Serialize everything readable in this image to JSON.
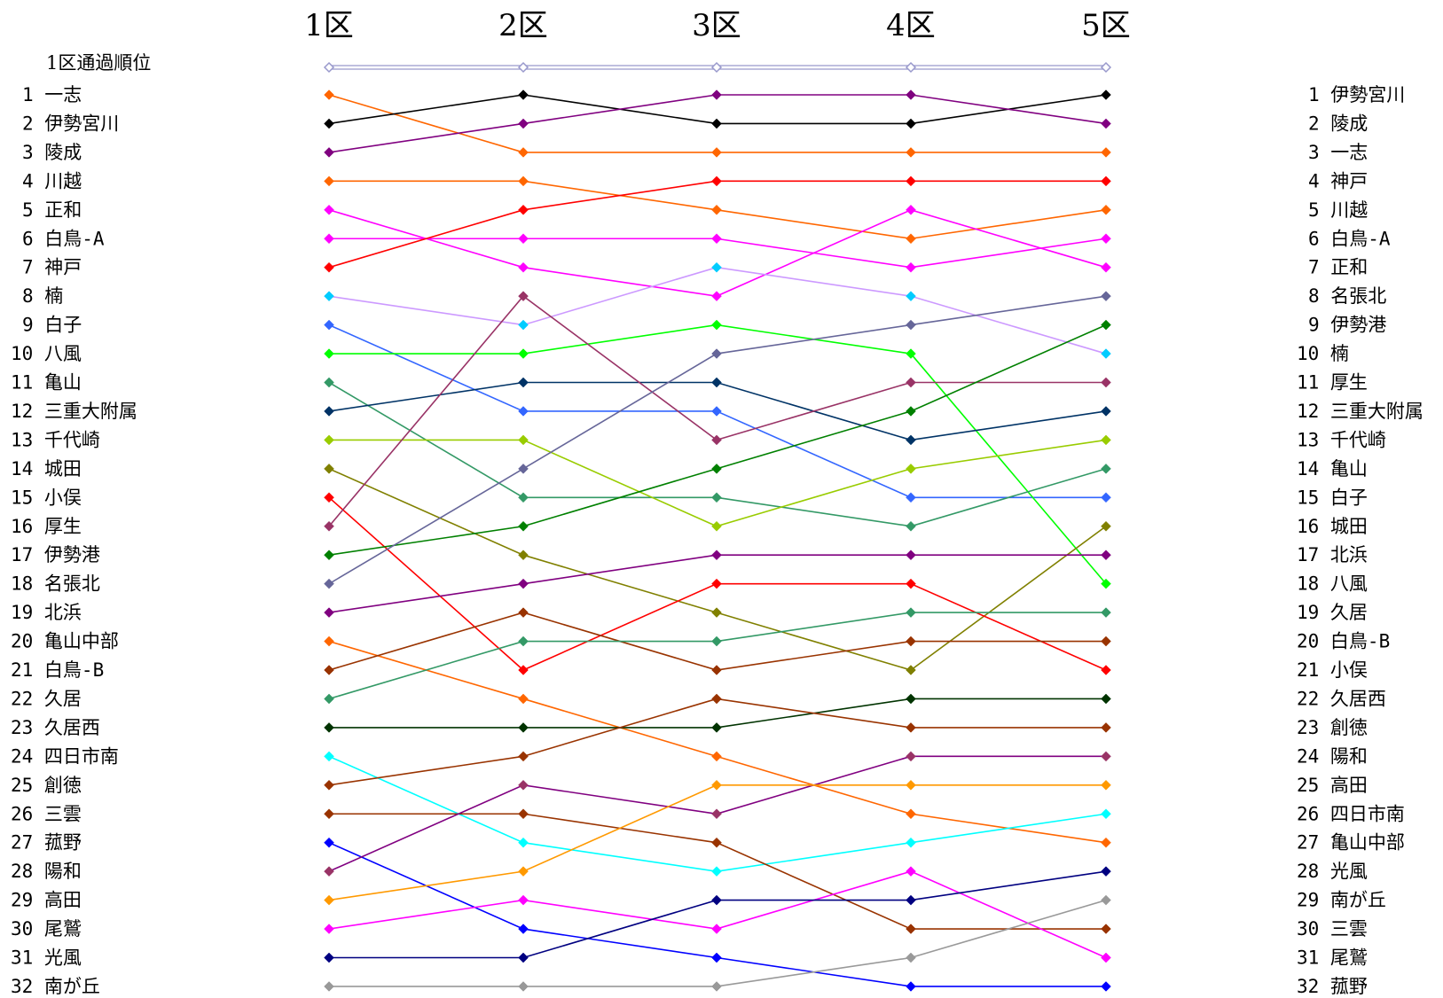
{
  "chart_data": {
    "type": "line",
    "left_title": "1区通過順位",
    "columns": [
      "1区",
      "2区",
      "3区",
      "4区",
      "5区"
    ],
    "left_labels": [
      "1 一志",
      "2 伊勢宮川",
      "3 陵成",
      "4 川越",
      "5 正和",
      "6 白鳥-A",
      "7 神戸",
      "8 楠",
      "9 白子",
      "10 八風",
      "11 亀山",
      "12 三重大附属",
      "13 千代崎",
      "14 城田",
      "15 小俣",
      "16 厚生",
      "17 伊勢港",
      "18 名張北",
      "19 北浜",
      "20 亀山中部",
      "21 白鳥-B",
      "22 久居",
      "23 久居西",
      "24 四日市南",
      "25 創徳",
      "26 三雲",
      "27 菰野",
      "28 陽和",
      "29 高田",
      "30 尾鷲",
      "31 光風",
      "32 南が丘"
    ],
    "right_labels": [
      "1 伊勢宮川",
      "2 陵成",
      "3 一志",
      "4 神戸",
      "5 川越",
      "6 白鳥-A",
      "7 正和",
      "8 名張北",
      "9 伊勢港",
      "10 楠",
      "11 厚生",
      "12 三重大附属",
      "13 千代崎",
      "14 亀山",
      "15 白子",
      "16 城田",
      "17 北浜",
      "18 八風",
      "19 久居",
      "20 白鳥-B",
      "21 小俣",
      "22 久居西",
      "23 創徳",
      "24 陽和",
      "25 高田",
      "26 四日市南",
      "27 亀山中部",
      "28 光風",
      "29 南が丘",
      "30 三雲",
      "31 尾鷲",
      "32 菰野"
    ],
    "y_range": [
      1,
      32
    ],
    "series": [
      {
        "name": "一志",
        "color": "#ff6600",
        "ranks": [
          1,
          3,
          3,
          3,
          3
        ]
      },
      {
        "name": "伊勢宮川",
        "color": "#000000",
        "ranks": [
          2,
          1,
          2,
          2,
          1
        ]
      },
      {
        "name": "陵成",
        "color": "#800080",
        "ranks": [
          3,
          2,
          1,
          1,
          2
        ]
      },
      {
        "name": "川越",
        "color": "#ff6600",
        "ranks": [
          4,
          4,
          5,
          6,
          5
        ]
      },
      {
        "name": "正和",
        "color": "#ff00ff",
        "ranks": [
          5,
          7,
          8,
          5,
          7
        ]
      },
      {
        "name": "白鳥-A",
        "color": "#ff00ff",
        "ranks": [
          6,
          6,
          6,
          7,
          6
        ]
      },
      {
        "name": "神戸",
        "color": "#ff0000",
        "ranks": [
          7,
          5,
          4,
          4,
          4
        ]
      },
      {
        "name": "楠",
        "color": "#cc99ff",
        "marker_color": "#00ccff",
        "ranks": [
          8,
          9,
          7,
          8,
          10
        ]
      },
      {
        "name": "白子",
        "color": "#3366ff",
        "ranks": [
          9,
          12,
          12,
          15,
          15
        ]
      },
      {
        "name": "八風",
        "color": "#00ff00",
        "ranks": [
          10,
          10,
          9,
          10,
          18
        ]
      },
      {
        "name": "亀山",
        "color": "#339966",
        "ranks": [
          11,
          15,
          15,
          16,
          14
        ]
      },
      {
        "name": "三重大附属",
        "color": "#003366",
        "ranks": [
          12,
          11,
          11,
          13,
          12
        ]
      },
      {
        "name": "千代崎",
        "color": "#99cc00",
        "ranks": [
          13,
          13,
          16,
          14,
          13
        ]
      },
      {
        "name": "城田",
        "color": "#808000",
        "ranks": [
          14,
          17,
          19,
          21,
          16
        ]
      },
      {
        "name": "小俣",
        "color": "#ff0000",
        "ranks": [
          15,
          21,
          18,
          18,
          21
        ]
      },
      {
        "name": "厚生",
        "color": "#993366",
        "ranks": [
          16,
          8,
          13,
          11,
          11
        ]
      },
      {
        "name": "伊勢港",
        "color": "#008000",
        "ranks": [
          17,
          16,
          14,
          12,
          9
        ]
      },
      {
        "name": "名張北",
        "color": "#666699",
        "ranks": [
          18,
          14,
          10,
          9,
          8
        ]
      },
      {
        "name": "北浜",
        "color": "#800080",
        "ranks": [
          19,
          18,
          17,
          17,
          17
        ]
      },
      {
        "name": "亀山中部",
        "color": "#ff6600",
        "ranks": [
          20,
          22,
          24,
          26,
          27
        ]
      },
      {
        "name": "白鳥-B",
        "color": "#993300",
        "ranks": [
          21,
          19,
          21,
          20,
          20
        ]
      },
      {
        "name": "久居",
        "color": "#339966",
        "ranks": [
          22,
          20,
          20,
          19,
          19
        ]
      },
      {
        "name": "久居西",
        "color": "#003300",
        "ranks": [
          23,
          23,
          23,
          22,
          22
        ]
      },
      {
        "name": "四日市南",
        "color": "#00ffff",
        "ranks": [
          24,
          27,
          28,
          27,
          26
        ]
      },
      {
        "name": "創徳",
        "color": "#993300",
        "ranks": [
          25,
          24,
          22,
          23,
          23
        ]
      },
      {
        "name": "三雲",
        "color": "#993300",
        "ranks": [
          26,
          26,
          27,
          30,
          30
        ]
      },
      {
        "name": "菰野",
        "color": "#0000ff",
        "ranks": [
          27,
          30,
          31,
          32,
          32
        ]
      },
      {
        "name": "陽和",
        "color": "#800080",
        "marker_color": "#993366",
        "ranks": [
          28,
          25,
          26,
          24,
          24
        ]
      },
      {
        "name": "高田",
        "color": "#ff9900",
        "ranks": [
          29,
          28,
          25,
          25,
          25
        ]
      },
      {
        "name": "尾鷲",
        "color": "#ff00ff",
        "ranks": [
          30,
          29,
          30,
          28,
          31
        ]
      },
      {
        "name": "光風",
        "color": "#000080",
        "ranks": [
          31,
          31,
          29,
          29,
          28
        ]
      },
      {
        "name": "南が丘",
        "color": "#999999",
        "ranks": [
          32,
          32,
          32,
          31,
          29
        ]
      }
    ],
    "header_line_color": "#9999cc"
  }
}
